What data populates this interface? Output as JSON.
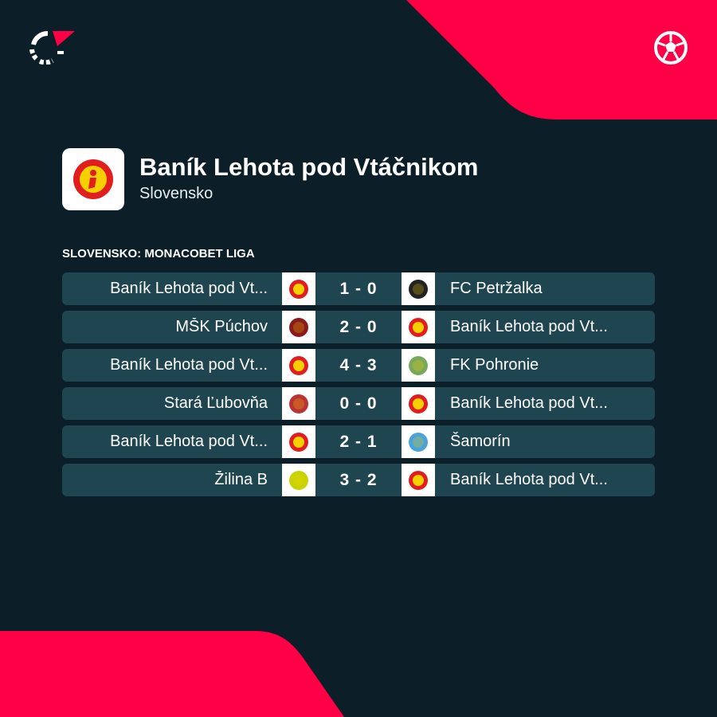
{
  "brand": {
    "accent": "#ff0046",
    "background": "#0c1f28",
    "row": "#1f4550"
  },
  "header": {
    "logo_icon": "flashscore-logo",
    "sport_icon": "soccer-ball-icon"
  },
  "team": {
    "name": "Baník Lehota pod Vtáčnikom",
    "country": "Slovensko",
    "crest_icon": "banik-lehota-crest"
  },
  "competition": "SLOVENSKO: MONACOBET LIGA",
  "matches": [
    {
      "home": "Baník Lehota pod Vt...",
      "score": "1 - 0",
      "away": "FC Petržalka",
      "home_logo": "#e11d1d",
      "away_logo": "#222"
    },
    {
      "home": "MŠK Púchov",
      "score": "2 - 0",
      "away": "Baník Lehota pod Vt...",
      "home_logo": "#8b1a1a",
      "away_logo": "#e11d1d"
    },
    {
      "home": "Baník Lehota pod Vt...",
      "score": "4 - 3",
      "away": "FK Pohronie",
      "home_logo": "#e11d1d",
      "away_logo": "#7aa85a"
    },
    {
      "home": "Stará Ľubovňa",
      "score": "0 - 0",
      "away": "Baník Lehota pod Vt...",
      "home_logo": "#b33",
      "away_logo": "#e11d1d"
    },
    {
      "home": "Baník Lehota pod Vt...",
      "score": "2 - 1",
      "away": "Šamorín",
      "home_logo": "#e11d1d",
      "away_logo": "#4aa3d8"
    },
    {
      "home": "Žilina B",
      "score": "3 - 2",
      "away": "Baník Lehota pod Vt...",
      "home_logo": "#c8d400",
      "away_logo": "#e11d1d"
    }
  ]
}
